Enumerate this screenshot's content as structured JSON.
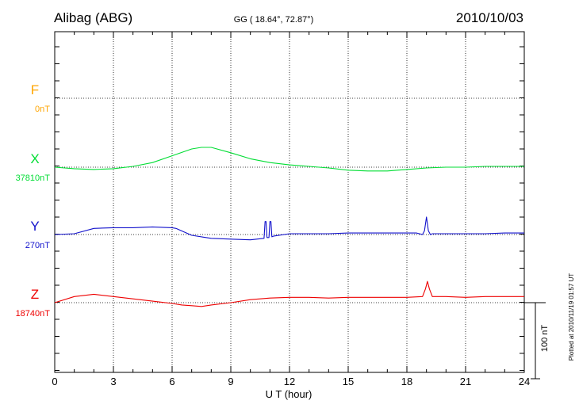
{
  "chart_data": {
    "type": "line",
    "station_title": "Alibag (ABG)",
    "coords_label": "GG ( 18.64°,  72.87°)",
    "date": "2010/10/03",
    "xlabel": "U T (hour)",
    "xlim": [
      0,
      24
    ],
    "x_ticks": [
      "0",
      "3",
      "6",
      "9",
      "12",
      "15",
      "18",
      "21",
      "24"
    ],
    "scale_label": "100 nT",
    "scale_nT": 100,
    "plotted_at": "Plotted at 2010/11/19 01:57 UT",
    "series": [
      {
        "name": "F",
        "baseline_label": "0nT",
        "baseline_nT": 0,
        "color": "#ffa500",
        "x": [],
        "dev": []
      },
      {
        "name": "X",
        "baseline_label": "37810nT",
        "baseline_nT": 37810,
        "color": "#00dd33",
        "x": [
          0,
          1,
          2,
          3,
          4,
          5,
          6,
          7,
          7.5,
          8,
          9,
          10,
          11,
          12,
          13,
          14,
          15,
          16,
          17,
          18,
          19,
          20,
          21,
          22,
          23,
          24
        ],
        "dev": [
          0,
          -2,
          -3,
          -2,
          1,
          6,
          15,
          24,
          26,
          26,
          19,
          11,
          6,
          3,
          1,
          -1,
          -4,
          -5,
          -5,
          -3,
          -1,
          0,
          0,
          1,
          1,
          1
        ]
      },
      {
        "name": "Y",
        "baseline_label": "270nT",
        "baseline_nT": 270,
        "color": "#1111cc",
        "x": [
          0,
          1,
          2,
          3,
          4,
          5,
          6,
          6.2,
          7,
          8,
          9,
          10,
          10.7,
          10.75,
          10.8,
          10.85,
          10.95,
          11.0,
          11.05,
          11.1,
          11.2,
          12,
          13,
          14,
          15,
          16,
          17,
          18,
          18.5,
          18.8,
          18.9,
          19.0,
          19.1,
          19.2,
          19.3,
          20,
          21,
          22,
          23,
          24
        ],
        "dev": [
          0,
          1,
          8,
          9,
          9,
          10,
          9,
          8,
          -1,
          -5,
          -6,
          -7,
          -5,
          17,
          17,
          -4,
          -4,
          17,
          17,
          -3,
          -2,
          1,
          1,
          1,
          2,
          2,
          2,
          2,
          2,
          0,
          5,
          23,
          5,
          0,
          1,
          1,
          1,
          1,
          2,
          2
        ]
      },
      {
        "name": "Z",
        "baseline_label": "18740nT",
        "baseline_nT": 18740,
        "color": "#ee0000",
        "x": [
          0,
          1,
          2,
          3,
          4,
          5,
          6,
          6.5,
          7,
          7.5,
          8,
          9,
          10,
          11,
          12,
          13,
          14,
          15,
          16,
          17,
          18,
          18.8,
          18.95,
          19.05,
          19.15,
          19.3,
          20,
          21,
          22,
          23,
          24
        ],
        "dev": [
          0,
          8,
          11,
          8,
          5,
          2,
          -1,
          -3,
          -4,
          -5,
          -3,
          0,
          4,
          6,
          7,
          7,
          6,
          7,
          7,
          7,
          7,
          8,
          18,
          28,
          18,
          8,
          8,
          7,
          8,
          8,
          8
        ]
      }
    ]
  }
}
